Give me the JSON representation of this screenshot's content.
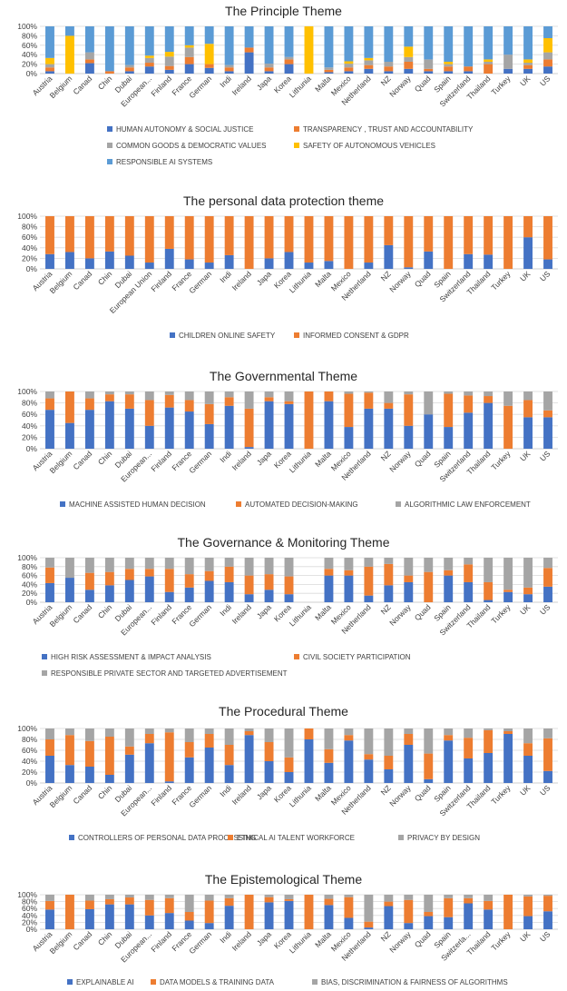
{
  "colors": {
    "blue": "#4472c4",
    "orange": "#ed7d31",
    "gray": "#a5a5a5",
    "yellow": "#ffc000",
    "light_blue": "#5b9bd5",
    "grid": "#d9d9d9",
    "text": "#404040"
  },
  "chart_data": [
    {
      "type": "bar",
      "stacked": "percent",
      "title": "The Principle Theme",
      "xlabel": "",
      "ylabel": "",
      "ylim": [
        0,
        100
      ],
      "yticks": [
        "0%",
        "20%",
        "40%",
        "60%",
        "80%",
        "100%"
      ],
      "categories": [
        "Austria",
        "Belgium",
        "Canad",
        "Chin",
        "Dubai",
        "European...",
        "Finland",
        "France",
        "German",
        "Indi",
        "Ireland",
        "Japa",
        "Korea",
        "Lithunia",
        "Malta",
        "Mexico",
        "Netherland",
        "NZ",
        "Norway",
        "Quad",
        "Spain",
        "Switzerland",
        "Thailand",
        "Turkey",
        "UK",
        "US"
      ],
      "series": [
        {
          "name": "HUMAN AUTONOMY & SOCIAL JUSTICE",
          "color_key": "blue",
          "values": [
            5,
            0,
            22,
            0,
            5,
            15,
            8,
            20,
            12,
            5,
            45,
            5,
            20,
            0,
            3,
            5,
            10,
            5,
            10,
            5,
            5,
            5,
            0,
            10,
            10,
            15
          ]
        },
        {
          "name": "TRANSPARENCY , TRUST AND ACCOUNTABILITY",
          "color_key": "orange",
          "values": [
            8,
            0,
            8,
            5,
            8,
            8,
            8,
            15,
            8,
            8,
            10,
            8,
            10,
            0,
            5,
            8,
            8,
            10,
            15,
            5,
            10,
            10,
            20,
            0,
            8,
            15
          ]
        },
        {
          "name": "COMMON GOODS & DEMOCRATIC VALUES",
          "color_key": "gray",
          "values": [
            7,
            0,
            15,
            0,
            5,
            10,
            20,
            20,
            0,
            5,
            0,
            8,
            5,
            0,
            5,
            8,
            10,
            10,
            10,
            20,
            5,
            0,
            5,
            30,
            5,
            15
          ]
        },
        {
          "name": "SAFETY OF AUTONOMOUS VEHICLES",
          "color_key": "yellow",
          "values": [
            13,
            80,
            0,
            0,
            0,
            5,
            10,
            5,
            43,
            0,
            0,
            0,
            0,
            100,
            0,
            5,
            5,
            0,
            22,
            0,
            5,
            0,
            5,
            0,
            7,
            30
          ]
        },
        {
          "name": "RESPONSIBLE AI SYSTEMS",
          "color_key": "light_blue",
          "values": [
            67,
            20,
            55,
            95,
            82,
            62,
            54,
            40,
            37,
            82,
            45,
            79,
            65,
            0,
            87,
            74,
            67,
            75,
            43,
            70,
            75,
            85,
            70,
            60,
            70,
            25
          ]
        }
      ]
    },
    {
      "type": "bar",
      "stacked": "percent",
      "title": "The personal data protection theme",
      "xlabel": "",
      "ylabel": "",
      "ylim": [
        0,
        100
      ],
      "yticks": [
        "0%",
        "20%",
        "40%",
        "60%",
        "80%",
        "100%"
      ],
      "categories": [
        "Austria",
        "Belgium",
        "Canad",
        "Chin",
        "Dubai",
        "European Union",
        "Finland",
        "France",
        "German",
        "Indi",
        "Ireland",
        "Japa",
        "Korea",
        "Lithunia",
        "Malta",
        "Mexico",
        "Netherland",
        "NZ",
        "Norway",
        "Quad",
        "Spain",
        "Switzerland",
        "Thailand",
        "Turkey",
        "UK",
        "US"
      ],
      "series": [
        {
          "name": "CHILDREN ONLINE SAFETY",
          "color_key": "blue",
          "values": [
            28,
            32,
            20,
            33,
            25,
            12,
            38,
            18,
            12,
            26,
            0,
            20,
            32,
            12,
            15,
            0,
            12,
            45,
            3,
            33,
            0,
            28,
            27,
            0,
            60,
            18
          ]
        },
        {
          "name": "INFORMED CONSENT & GDPR",
          "color_key": "orange",
          "values": [
            72,
            68,
            80,
            67,
            75,
            88,
            62,
            82,
            88,
            74,
            100,
            80,
            68,
            88,
            85,
            100,
            88,
            55,
            97,
            67,
            100,
            72,
            73,
            100,
            40,
            82
          ]
        }
      ]
    },
    {
      "type": "bar",
      "stacked": "percent",
      "title": "The Governmental Theme",
      "xlabel": "",
      "ylabel": "",
      "ylim": [
        0,
        100
      ],
      "yticks": [
        "0%",
        "20%",
        "40%",
        "60%",
        "80%",
        "100%"
      ],
      "categories": [
        "Austria",
        "Belgium",
        "Canad",
        "Chin",
        "Dubai",
        "European...",
        "Finland",
        "France",
        "German",
        "Indi",
        "Ireland",
        "Japa",
        "Korea",
        "Lithunia",
        "Malta",
        "Mexico",
        "Netherland",
        "NZ",
        "Norway",
        "Quad",
        "Spain",
        "Switzerland",
        "Thailand",
        "Turkey",
        "UK",
        "US"
      ],
      "series": [
        {
          "name": "MACHINE ASSISTED HUMAN DECISION",
          "color_key": "blue",
          "values": [
            68,
            45,
            68,
            83,
            70,
            40,
            72,
            65,
            43,
            75,
            3,
            83,
            78,
            0,
            83,
            38,
            70,
            70,
            40,
            60,
            38,
            63,
            80,
            0,
            55,
            55
          ]
        },
        {
          "name": "AUTOMATED DECISION-MAKING",
          "color_key": "orange",
          "values": [
            20,
            55,
            20,
            12,
            25,
            45,
            22,
            20,
            35,
            15,
            67,
            7,
            5,
            100,
            17,
            58,
            28,
            10,
            55,
            0,
            58,
            30,
            12,
            75,
            30,
            12
          ]
        },
        {
          "name": "ALGORITHMIC LAW ENFORCEMENT",
          "color_key": "gray",
          "values": [
            12,
            0,
            12,
            5,
            5,
            15,
            6,
            15,
            22,
            10,
            30,
            10,
            17,
            0,
            0,
            4,
            2,
            20,
            5,
            40,
            4,
            7,
            8,
            25,
            15,
            33
          ]
        }
      ]
    },
    {
      "type": "bar",
      "stacked": "percent",
      "title": "The Governance & Monitoring Theme",
      "xlabel": "",
      "ylabel": "",
      "ylim": [
        0,
        100
      ],
      "yticks": [
        "0%",
        "20%",
        "40%",
        "60%",
        "80%",
        "100%"
      ],
      "categories": [
        "Austria",
        "Belgium",
        "Canad",
        "Chin",
        "Dubai",
        "European...",
        "Finland",
        "France",
        "German",
        "Indi",
        "Ireland",
        "Japa",
        "Korea",
        "Lithunia",
        "Malta",
        "Mexico",
        "Netherland",
        "NZ",
        "Norway",
        "Quad",
        "Spain",
        "Switzerland",
        "Thailand",
        "Turkey",
        "UK",
        "US"
      ],
      "series": [
        {
          "name": "HIGH RISK ASSESSMENT & IMPACT ANALYSIS",
          "color_key": "blue",
          "values": [
            43,
            55,
            28,
            38,
            50,
            58,
            23,
            33,
            48,
            45,
            18,
            28,
            18,
            0,
            60,
            60,
            15,
            38,
            45,
            0,
            60,
            45,
            5,
            23,
            18,
            35
          ]
        },
        {
          "name": "CIVIL SOCIETY PARTICIPATION",
          "color_key": "orange",
          "values": [
            35,
            0,
            38,
            30,
            25,
            17,
            52,
            30,
            22,
            35,
            42,
            35,
            40,
            0,
            15,
            12,
            65,
            48,
            15,
            68,
            12,
            40,
            40,
            5,
            15,
            42
          ]
        },
        {
          "name": "RESPONSIBLE PRIVATE SECTOR AND TARGETED ADVERTISEMENT",
          "color_key": "gray",
          "values": [
            22,
            45,
            34,
            32,
            25,
            25,
            25,
            37,
            30,
            20,
            40,
            37,
            42,
            0,
            25,
            28,
            20,
            14,
            40,
            32,
            28,
            15,
            55,
            72,
            67,
            23
          ]
        }
      ]
    },
    {
      "type": "bar",
      "stacked": "percent",
      "title": "The Procedural Theme",
      "xlabel": "",
      "ylabel": "",
      "ylim": [
        0,
        100
      ],
      "yticks": [
        "0%",
        "20%",
        "40%",
        "60%",
        "80%",
        "100%"
      ],
      "categories": [
        "Austria",
        "Belgium",
        "Canad",
        "Chin",
        "Dubai",
        "European...",
        "Finland",
        "France",
        "German",
        "Indi",
        "Ireland",
        "Japa",
        "Korea",
        "Lithunia",
        "Malta",
        "Mexico",
        "Netherland",
        "NZ",
        "Norway",
        "Quad",
        "Spain",
        "Switzerland",
        "Thailand",
        "Turkey",
        "UK",
        "US"
      ],
      "series": [
        {
          "name": "CONTROLLERS OF PERSONAL DATA PROCESSING",
          "color_key": "blue",
          "values": [
            50,
            33,
            30,
            15,
            52,
            73,
            3,
            47,
            65,
            33,
            88,
            40,
            20,
            80,
            37,
            78,
            43,
            25,
            70,
            7,
            78,
            45,
            55,
            90,
            50,
            22
          ]
        },
        {
          "name": "ETHICAL AI TALENT WORKFORCE",
          "color_key": "orange",
          "values": [
            30,
            55,
            47,
            70,
            15,
            17,
            90,
            28,
            25,
            37,
            7,
            35,
            27,
            20,
            25,
            10,
            10,
            25,
            20,
            47,
            10,
            38,
            42,
            5,
            23,
            60
          ]
        },
        {
          "name": "PRIVACY BY DESIGN",
          "color_key": "gray",
          "values": [
            20,
            12,
            23,
            15,
            33,
            10,
            7,
            25,
            10,
            30,
            5,
            25,
            53,
            0,
            38,
            12,
            47,
            50,
            10,
            46,
            12,
            17,
            3,
            5,
            27,
            18
          ]
        }
      ]
    },
    {
      "type": "bar",
      "stacked": "percent",
      "title": "The Epistemological Theme",
      "xlabel": "",
      "ylabel": "",
      "ylim": [
        0,
        100
      ],
      "yticks": [
        "0%",
        "20%",
        "40%",
        "60%",
        "80%",
        "100%"
      ],
      "categories": [
        "Austria",
        "Belgium",
        "Canad",
        "Chin",
        "Dubai",
        "European...",
        "Finland",
        "France",
        "German",
        "Indi",
        "Ireland",
        "Japa",
        "Korea",
        "Lithunia",
        "Malta",
        "Mexico",
        "Netherland",
        "NZ",
        "Norway",
        "Quad",
        "Spain",
        "Switzerla...",
        "Thailand",
        "Turkey",
        "UK",
        "US"
      ],
      "series": [
        {
          "name": "EXPLAINABLE AI",
          "color_key": "blue",
          "values": [
            57,
            0,
            58,
            72,
            72,
            40,
            47,
            25,
            18,
            68,
            0,
            78,
            82,
            0,
            70,
            33,
            5,
            67,
            18,
            38,
            35,
            75,
            57,
            0,
            38,
            52
          ]
        },
        {
          "name": "DATA MODELS & TRAINING DATA",
          "color_key": "orange",
          "values": [
            25,
            100,
            25,
            15,
            20,
            45,
            43,
            25,
            65,
            22,
            100,
            15,
            5,
            100,
            18,
            60,
            17,
            13,
            67,
            12,
            55,
            15,
            25,
            100,
            57,
            45
          ]
        },
        {
          "name": "BIAS, DISCRIMINATION & FAIRNESS OF ALGORITHMS",
          "color_key": "gray",
          "values": [
            18,
            0,
            17,
            13,
            8,
            15,
            10,
            50,
            17,
            10,
            0,
            7,
            13,
            0,
            12,
            7,
            78,
            20,
            15,
            50,
            10,
            10,
            18,
            0,
            5,
            3
          ]
        }
      ]
    }
  ]
}
